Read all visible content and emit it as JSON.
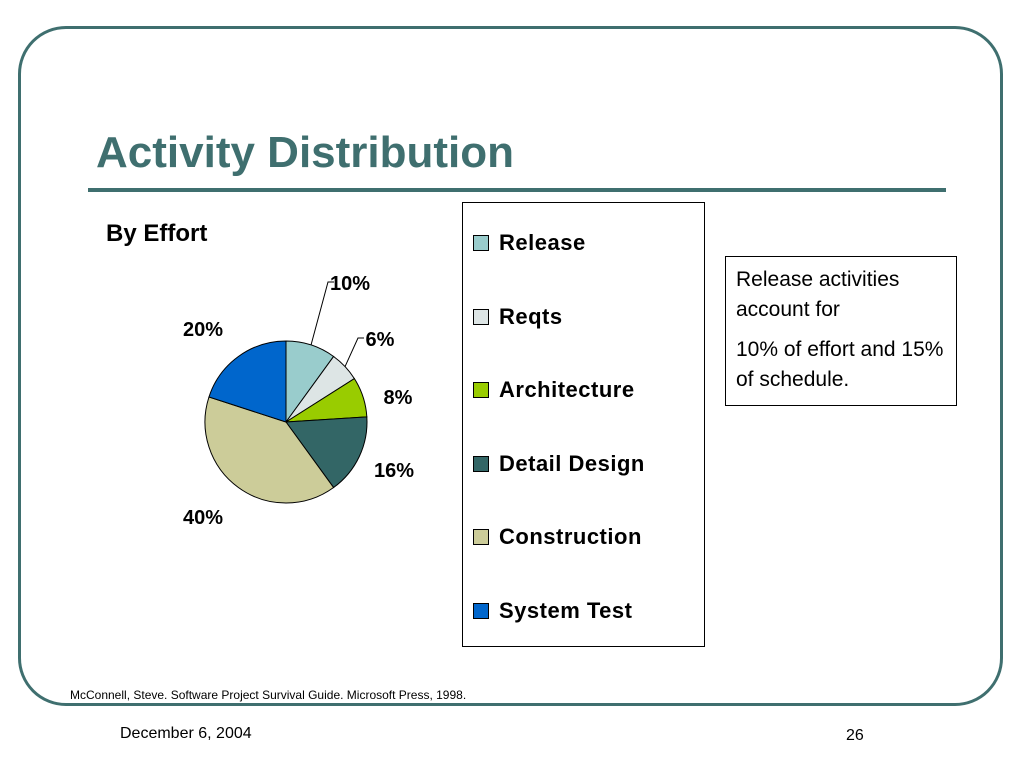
{
  "slide": {
    "title": "Activity Distribution",
    "citation": "McConnell, Steve. Software Project Survival Guide.  Microsoft Press, 1998.",
    "date": "December 6, 2004",
    "page_number": "26",
    "colors": {
      "accent": "#3f6f6f",
      "background": "#ffffff"
    }
  },
  "callout": {
    "line1": "Release activities account for",
    "line2": "10% of effort and 15% of schedule."
  },
  "chart_data": {
    "type": "pie",
    "title": "By Effort",
    "legend_position": "right",
    "categories": [
      "Release",
      "Reqts",
      "Architecture",
      "Detail Design",
      "Construction",
      "System Test"
    ],
    "values": [
      10,
      6,
      8,
      16,
      40,
      20
    ],
    "labels": [
      "10%",
      "6%",
      "8%",
      "16%",
      "40%",
      "20%"
    ],
    "colors": [
      "#99cccc",
      "#dde5e5",
      "#99cc00",
      "#336666",
      "#cccc99",
      "#0066cc"
    ]
  }
}
